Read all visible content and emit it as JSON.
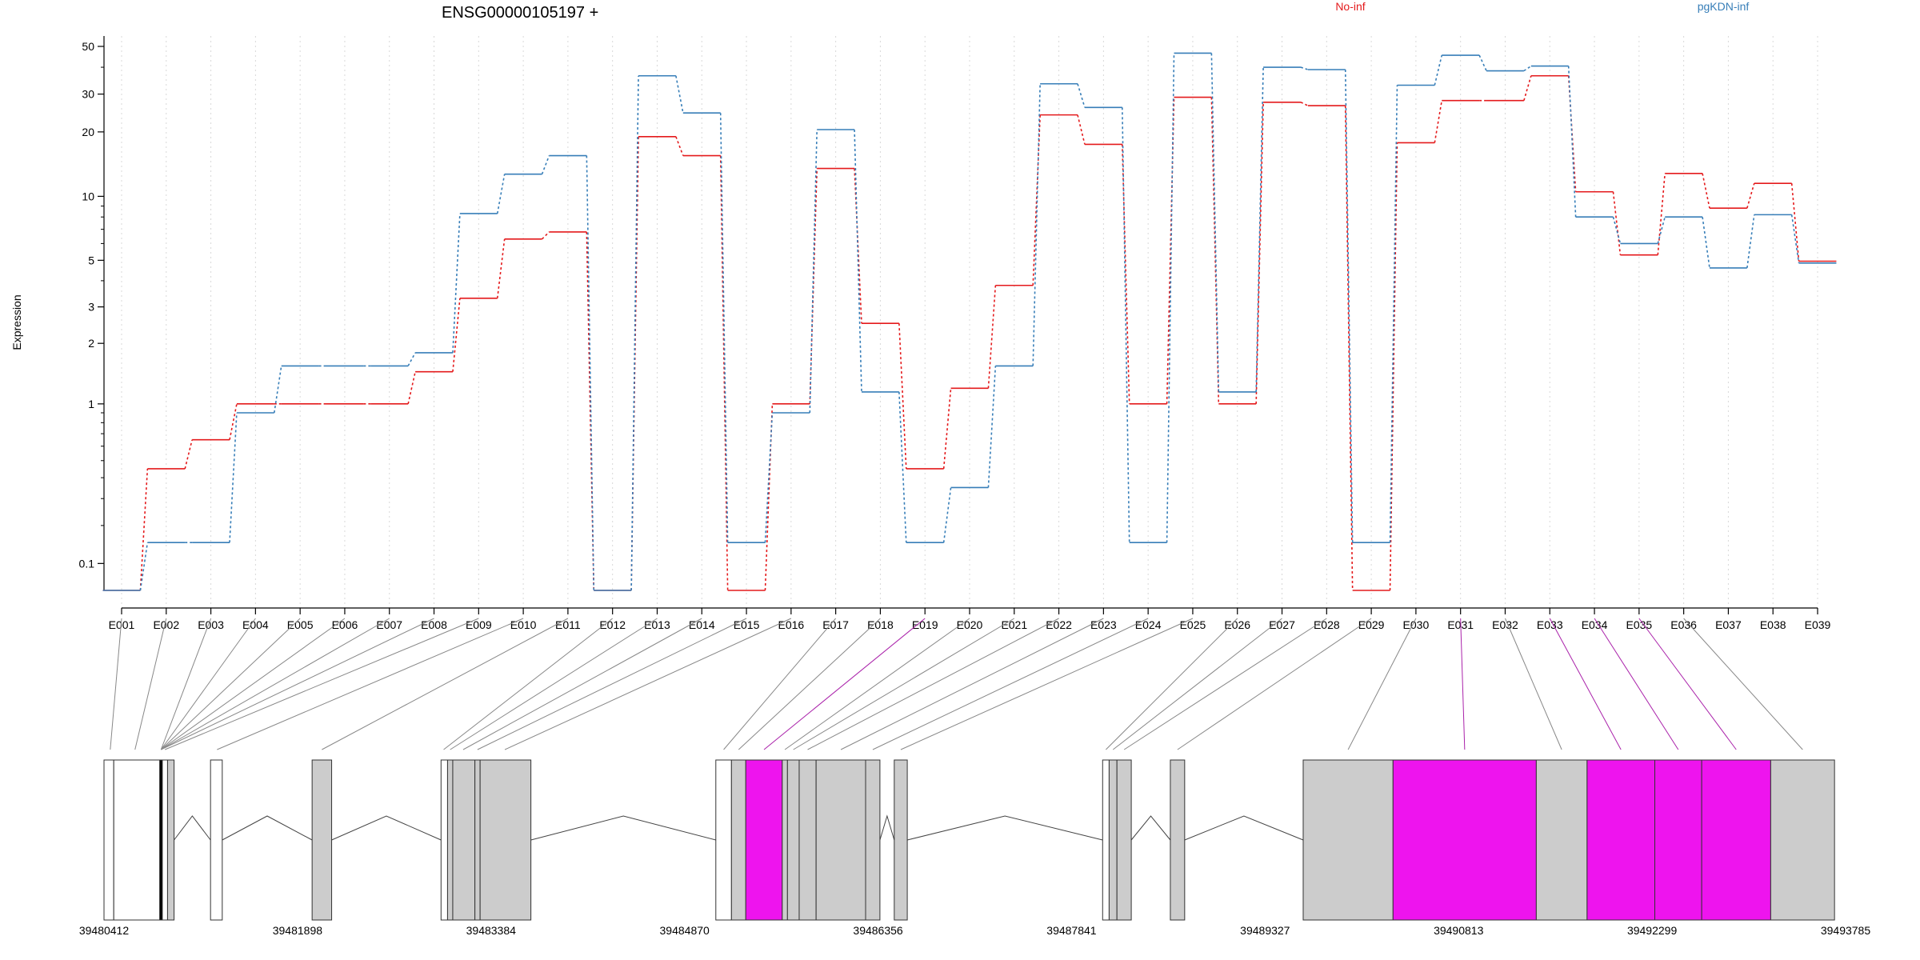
{
  "chart_data": {
    "type": "line",
    "title": "ENSG00000105197 +",
    "ylabel": "Expression",
    "y_scale": "log(x+0.1)",
    "y_ticks": [
      0.1,
      1,
      2,
      3,
      5,
      10,
      20,
      30,
      50
    ],
    "y_tick_labels": [
      "0.1",
      "1",
      "2",
      "3",
      "5",
      "10",
      "20",
      "30",
      "50"
    ],
    "grid": "vertical dotted",
    "legend_position": "top-right",
    "categories": [
      "E001",
      "E002",
      "E003",
      "E004",
      "E005",
      "E006",
      "E007",
      "E008",
      "E009",
      "E010",
      "E011",
      "E012",
      "E013",
      "E014",
      "E015",
      "E016",
      "E017",
      "E018",
      "E019",
      "E020",
      "E021",
      "E022",
      "E023",
      "E024",
      "E025",
      "E026",
      "E027",
      "E028",
      "E029",
      "E030",
      "E031",
      "E032",
      "E033",
      "E034",
      "E035",
      "E036",
      "E037",
      "E038",
      "E039"
    ],
    "series": [
      {
        "name": "No-inf",
        "color": "#e41a1c",
        "values": [
          0.05,
          0.45,
          0.65,
          1.0,
          1.0,
          1.0,
          1.0,
          1.45,
          3.3,
          6.3,
          6.8,
          0.05,
          19,
          15.5,
          0.05,
          1.0,
          13.5,
          2.5,
          0.45,
          1.2,
          3.8,
          24,
          17.5,
          1.0,
          29,
          1.0,
          27.5,
          26.5,
          0.05,
          17.8,
          28,
          28,
          36.5,
          10.5,
          5.3,
          12.8,
          8.8,
          11.5,
          4.95
        ]
      },
      {
        "name": "pgKDN-inf",
        "color": "#377eb8",
        "values": [
          0.05,
          0.15,
          0.15,
          0.9,
          1.55,
          1.55,
          1.55,
          1.8,
          8.3,
          12.7,
          15.5,
          0.05,
          36.5,
          24.5,
          0.15,
          0.9,
          20.5,
          1.15,
          0.15,
          0.35,
          1.55,
          33.5,
          26,
          0.15,
          46.5,
          1.15,
          40,
          39,
          0.15,
          33,
          45.5,
          38.5,
          40.5,
          8.0,
          6.0,
          8.0,
          4.6,
          8.2,
          4.85
        ]
      }
    ],
    "gene_model": {
      "coordinate_labels": [
        "39480412",
        "39481898",
        "39483384",
        "39484870",
        "39486356",
        "39487841",
        "39489327",
        "39490813",
        "39492299",
        "39493785"
      ],
      "x_range": [
        39480412,
        39493785
      ],
      "highlight_color": "#ee14ee",
      "exon_fill": "#cccccc",
      "segments": [
        {
          "s": 39480412,
          "e": 39480487,
          "fill": "white"
        },
        {
          "s": 39480487,
          "e": 39480840,
          "fill": "white"
        },
        {
          "s": 39480840,
          "e": 39480860,
          "fill": "black"
        },
        {
          "s": 39480860,
          "e": 39480900,
          "fill": "white"
        },
        {
          "s": 39480900,
          "e": 39480950,
          "fill": "gray"
        },
        {
          "s": 39481230,
          "e": 39481320,
          "fill": "white"
        },
        {
          "s": 39482010,
          "e": 39482160,
          "fill": "gray"
        },
        {
          "s": 39483000,
          "e": 39483050,
          "fill": "white"
        },
        {
          "s": 39483050,
          "e": 39483090,
          "fill": "gray"
        },
        {
          "s": 39483090,
          "e": 39483260,
          "fill": "gray"
        },
        {
          "s": 39483260,
          "e": 39483300,
          "fill": "gray"
        },
        {
          "s": 39483300,
          "e": 39483690,
          "fill": "gray"
        },
        {
          "s": 39485110,
          "e": 39485230,
          "fill": "white"
        },
        {
          "s": 39485230,
          "e": 39485340,
          "fill": "gray"
        },
        {
          "s": 39485340,
          "e": 39485620,
          "fill": "magenta"
        },
        {
          "s": 39485620,
          "e": 39485660,
          "fill": "gray"
        },
        {
          "s": 39485660,
          "e": 39485750,
          "fill": "gray"
        },
        {
          "s": 39485750,
          "e": 39485880,
          "fill": "gray"
        },
        {
          "s": 39485880,
          "e": 39486260,
          "fill": "gray"
        },
        {
          "s": 39486260,
          "e": 39486370,
          "fill": "gray"
        },
        {
          "s": 39486480,
          "e": 39486580,
          "fill": "gray"
        },
        {
          "s": 39488080,
          "e": 39488130,
          "fill": "white"
        },
        {
          "s": 39488130,
          "e": 39488190,
          "fill": "gray"
        },
        {
          "s": 39488190,
          "e": 39488300,
          "fill": "gray"
        },
        {
          "s": 39488600,
          "e": 39488710,
          "fill": "gray"
        },
        {
          "s": 39489620,
          "e": 39490310,
          "fill": "gray"
        },
        {
          "s": 39490310,
          "e": 39491410,
          "fill": "magenta"
        },
        {
          "s": 39491410,
          "e": 39491800,
          "fill": "gray"
        },
        {
          "s": 39491800,
          "e": 39492320,
          "fill": "magenta"
        },
        {
          "s": 39492320,
          "e": 39492680,
          "fill": "magenta"
        },
        {
          "s": 39492680,
          "e": 39493210,
          "fill": "magenta"
        },
        {
          "s": 39493210,
          "e": 39493700,
          "fill": "gray"
        }
      ],
      "introns": [
        [
          39480950,
          39481230
        ],
        [
          39481320,
          39482010
        ],
        [
          39482160,
          39483000
        ],
        [
          39483690,
          39485110
        ],
        [
          39486370,
          39486480
        ],
        [
          39486580,
          39488080
        ],
        [
          39488300,
          39488600
        ],
        [
          39488710,
          39489620
        ]
      ],
      "connectors": [
        {
          "g": 39480460,
          "h": false
        },
        {
          "g": 39480650,
          "h": false
        },
        {
          "g": 39480850,
          "h": false
        },
        {
          "g": 39480850,
          "h": false
        },
        {
          "g": 39480850,
          "h": false
        },
        {
          "g": 39480850,
          "h": false
        },
        {
          "g": 39480850,
          "h": false
        },
        {
          "g": 39480850,
          "h": false
        },
        {
          "g": 39480880,
          "h": false
        },
        {
          "g": 39481280,
          "h": false
        },
        {
          "g": 39482085,
          "h": false
        },
        {
          "g": 39483020,
          "h": false
        },
        {
          "g": 39483070,
          "h": false
        },
        {
          "g": 39483170,
          "h": false
        },
        {
          "g": 39483280,
          "h": false
        },
        {
          "g": 39483490,
          "h": false
        },
        {
          "g": 39485170,
          "h": false
        },
        {
          "g": 39485285,
          "h": false
        },
        {
          "g": 39485480,
          "h": true
        },
        {
          "g": 39485640,
          "h": false
        },
        {
          "g": 39485705,
          "h": false
        },
        {
          "g": 39485815,
          "h": false
        },
        {
          "g": 39486070,
          "h": false
        },
        {
          "g": 39486315,
          "h": false
        },
        {
          "g": 39486530,
          "h": false
        },
        {
          "g": 39488105,
          "h": false
        },
        {
          "g": 39488160,
          "h": false
        },
        {
          "g": 39488245,
          "h": false
        },
        {
          "g": 39488655,
          "h": false
        },
        {
          "g": 39489965,
          "h": false
        },
        {
          "g": 39490860,
          "h": true
        },
        {
          "g": 39491605,
          "h": false
        },
        {
          "g": 39492060,
          "h": true
        },
        {
          "g": 39492500,
          "h": true
        },
        {
          "g": 39492945,
          "h": true
        },
        {
          "g": 39493455,
          "h": false
        }
      ]
    }
  }
}
